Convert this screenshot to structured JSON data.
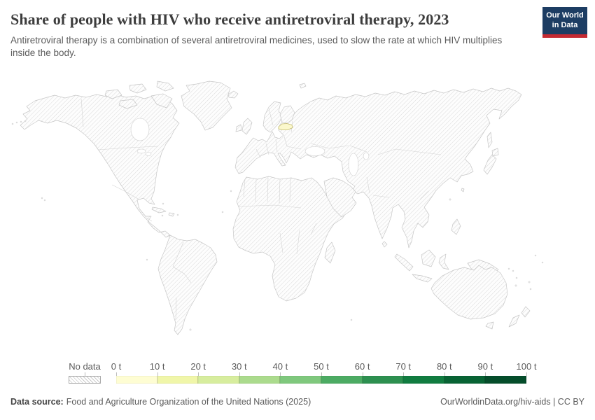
{
  "header": {
    "title": "Share of people with HIV who receive antiretroviral therapy, 2023",
    "subtitle": "Antiretroviral therapy is a combination of several antiretroviral medicines, used to slow the rate at which HIV multiplies inside the body.",
    "logo": {
      "line1": "Our World",
      "line2": "in Data",
      "bg_color": "#1d3d63",
      "accent_color": "#c52a32"
    }
  },
  "map": {
    "highlighted": {
      "name": "Latvia",
      "value_bucket": "0 t – 10 t",
      "fill": "#fbf8cc",
      "stroke": "#c2b96a"
    },
    "no_data_style": "diagonal-hatch",
    "land_stroke": "#c6c6c6",
    "hatch_color": "#d9d9d9"
  },
  "legend": {
    "no_data_label": "No data",
    "ticks": [
      "0 t",
      "10 t",
      "20 t",
      "30 t",
      "40 t",
      "50 t",
      "60 t",
      "70 t",
      "80 t",
      "90 t",
      "100 t"
    ],
    "colors": [
      "#fefdd3",
      "#f0f6a9",
      "#d7ed9e",
      "#abdb8d",
      "#7fc87d",
      "#4cab63",
      "#2d9050",
      "#117c40",
      "#086334",
      "#054d2b"
    ]
  },
  "footer": {
    "source_label": "Data source:",
    "source_text": "Food and Agriculture Organization of the United Nations (2025)",
    "credit": "OurWorldinData.org/hiv-aids | CC BY"
  },
  "chart_data": {
    "type": "heatmap",
    "subtype": "choropleth_world_map",
    "title": "Share of people with HIV who receive antiretroviral therapy, 2023",
    "year": 2023,
    "unit": "t",
    "colorscale": {
      "ticks": [
        "0 t",
        "10 t",
        "20 t",
        "30 t",
        "40 t",
        "50 t",
        "60 t",
        "70 t",
        "80 t",
        "90 t",
        "100 t"
      ],
      "colors": [
        "#fefdd3",
        "#f0f6a9",
        "#d7ed9e",
        "#abdb8d",
        "#7fc87d",
        "#4cab63",
        "#2d9050",
        "#117c40",
        "#086334",
        "#054d2b"
      ],
      "no_data_label": "No data"
    },
    "values": [
      {
        "entity": "Latvia",
        "value_bucket": "0 t – 10 t"
      }
    ],
    "note_visible_in_pixels": "All other countries are rendered with the hatched no-data pattern"
  }
}
